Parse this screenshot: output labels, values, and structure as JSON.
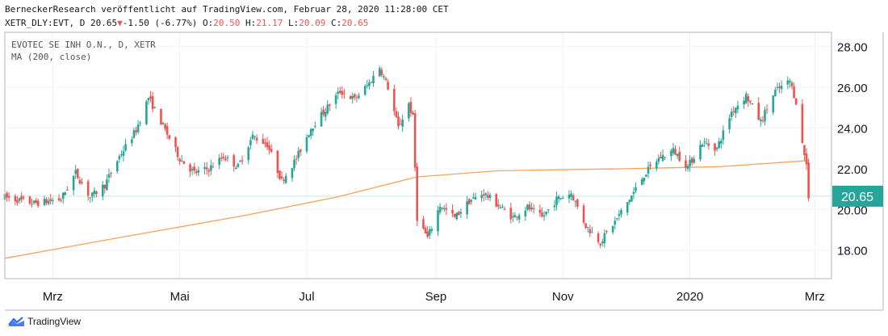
{
  "header": {
    "line1": "BerneckerResearch veröffentlicht auf TradingView.com, Februar 28, 2020 11:28:00 CET",
    "symbol_prefix": "XETR_DLY:EVT, D 20.65",
    "down_arrow": "▼",
    "change": "-1.50 (-6.77%)",
    "o_label": "O:",
    "o_value": "20.50",
    "h_label": "H:",
    "h_value": "21.17",
    "l_label": "L:",
    "l_value": "20.09",
    "c_label": "C:",
    "c_value": "20.65"
  },
  "legend": {
    "instrument": "EVOTEC SE INH O.N., D, XETR",
    "indicator": "MA (200, close)"
  },
  "footer": {
    "brand": "TradingView",
    "logo_icon": "tradingview-logo-icon"
  },
  "colors": {
    "up": "#26a69a",
    "down": "#ef5350",
    "ma": "#f7a35c",
    "last_line": "#c8e6e2",
    "price_badge": "#26a69a"
  },
  "chart_data": {
    "type": "candlestick",
    "x_range": [
      "2019-02-06",
      "2020-03-09"
    ],
    "xticks": [
      {
        "label": "Mrz",
        "date": "2019-03-01"
      },
      {
        "label": "Mai",
        "date": "2019-05-01"
      },
      {
        "label": "Jul",
        "date": "2019-07-01"
      },
      {
        "label": "Sep",
        "date": "2019-09-01"
      },
      {
        "label": "Nov",
        "date": "2019-11-01"
      },
      {
        "label": "2020",
        "date": "2020-01-01"
      },
      {
        "label": "Mrz",
        "date": "2020-03-01"
      }
    ],
    "ylim": [
      16.6,
      28.7
    ],
    "yticks": [
      "18.00",
      "20.00",
      "22.00",
      "24.00",
      "26.00",
      "28.00"
    ],
    "last_price": 20.65,
    "last_price_label": "20.65",
    "price_path": [
      [
        "2019-02-06",
        20.6
      ],
      [
        "2019-02-20",
        20.3
      ],
      [
        "2019-03-05",
        20.5
      ],
      [
        "2019-03-12",
        21.8
      ],
      [
        "2019-03-19",
        20.6
      ],
      [
        "2019-03-26",
        21.2
      ],
      [
        "2019-04-02",
        22.6
      ],
      [
        "2019-04-10",
        23.9
      ],
      [
        "2019-04-16",
        25.5
      ],
      [
        "2019-04-24",
        23.9
      ],
      [
        "2019-05-01",
        22.5
      ],
      [
        "2019-05-08",
        21.8
      ],
      [
        "2019-05-15",
        22.0
      ],
      [
        "2019-05-22",
        22.6
      ],
      [
        "2019-05-29",
        22.1
      ],
      [
        "2019-06-05",
        23.6
      ],
      [
        "2019-06-12",
        23.2
      ],
      [
        "2019-06-19",
        21.4
      ],
      [
        "2019-06-26",
        22.5
      ],
      [
        "2019-07-03",
        24.0
      ],
      [
        "2019-07-10",
        24.9
      ],
      [
        "2019-07-17",
        25.8
      ],
      [
        "2019-07-24",
        25.4
      ],
      [
        "2019-07-31",
        26.2
      ],
      [
        "2019-08-05",
        27.0
      ],
      [
        "2019-08-09",
        26.0
      ],
      [
        "2019-08-14",
        24.0
      ],
      [
        "2019-08-19",
        25.2
      ],
      [
        "2019-08-21",
        24.5
      ],
      [
        "2019-08-23",
        19.6
      ],
      [
        "2019-08-28",
        18.6
      ],
      [
        "2019-09-03",
        20.2
      ],
      [
        "2019-09-10",
        19.6
      ],
      [
        "2019-09-17",
        20.4
      ],
      [
        "2019-09-24",
        20.8
      ],
      [
        "2019-10-01",
        20.2
      ],
      [
        "2019-10-08",
        19.6
      ],
      [
        "2019-10-15",
        20.1
      ],
      [
        "2019-10-22",
        19.6
      ],
      [
        "2019-10-29",
        20.5
      ],
      [
        "2019-11-05",
        20.8
      ],
      [
        "2019-11-12",
        19.2
      ],
      [
        "2019-11-19",
        18.4
      ],
      [
        "2019-11-26",
        19.4
      ],
      [
        "2019-12-03",
        20.5
      ],
      [
        "2019-12-10",
        21.7
      ],
      [
        "2019-12-17",
        22.5
      ],
      [
        "2019-12-24",
        22.9
      ],
      [
        "2019-12-31",
        22.1
      ],
      [
        "2020-01-07",
        23.3
      ],
      [
        "2020-01-14",
        23.0
      ],
      [
        "2020-01-21",
        24.8
      ],
      [
        "2020-01-28",
        25.6
      ],
      [
        "2020-02-04",
        24.3
      ],
      [
        "2020-02-11",
        25.8
      ],
      [
        "2020-02-18",
        26.3
      ],
      [
        "2020-02-21",
        25.3
      ],
      [
        "2020-02-24",
        23.2
      ],
      [
        "2020-02-26",
        22.2
      ],
      [
        "2020-02-27",
        20.65
      ]
    ],
    "ma_200": [
      [
        "2019-02-06",
        17.6
      ],
      [
        "2019-04-01",
        18.6
      ],
      [
        "2019-06-01",
        19.7
      ],
      [
        "2019-07-15",
        20.6
      ],
      [
        "2019-08-23",
        21.6
      ],
      [
        "2019-10-01",
        21.9
      ],
      [
        "2019-12-01",
        22.0
      ],
      [
        "2020-01-15",
        22.1
      ],
      [
        "2020-02-27",
        22.4
      ]
    ]
  }
}
